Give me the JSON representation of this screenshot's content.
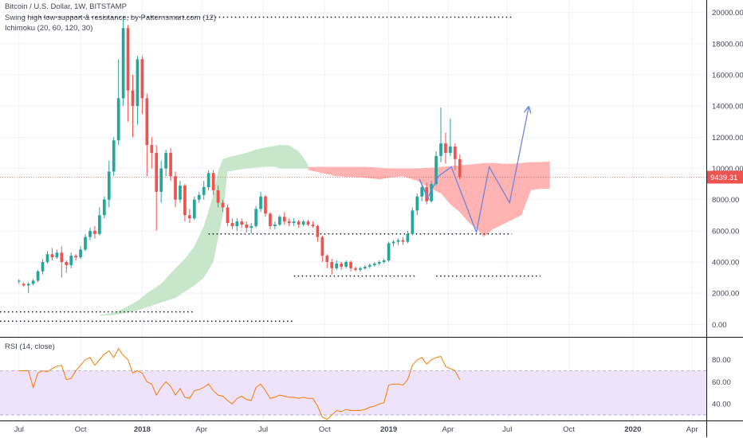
{
  "legend": {
    "title": "Bitcoin / U.S. Dollar, 1W, BITSTAMP",
    "indicator1": "Swing high low support & resistance, by Patternsmart.com (12)",
    "indicator2": "Ichimoku (20, 60, 120, 30)",
    "rsi": "RSI (14, close)"
  },
  "colors": {
    "up": "#26a69a",
    "down": "#ef5350",
    "cloud_bull": "#c8e6c9",
    "cloud_bear": "#ffb3b3",
    "rsi_line": "#f57c00",
    "rsi_band": "#efe3fb",
    "projection": "#6f86d6",
    "price_tag": "#ef5350"
  },
  "chart_data": [
    {
      "type": "candlestick",
      "timeframe": "1W",
      "current_price": 9439.31,
      "current_price_label": "9439.31",
      "y_ticks": [
        "20000.00",
        "18000.00",
        "16000.00",
        "14000.00",
        "12000.00",
        "10000.00",
        "8000.00",
        "6000.00",
        "4000.00",
        "2000.00",
        "0.00"
      ],
      "ylim": [
        -800,
        20800
      ],
      "x_ticks": [
        {
          "label": "Jul",
          "t": 0.0,
          "year": false
        },
        {
          "label": "Oct",
          "t": 13.0,
          "year": false
        },
        {
          "label": "2018",
          "t": 26.0,
          "year": true
        },
        {
          "label": "Apr",
          "t": 38.5,
          "year": false
        },
        {
          "label": "Jul",
          "t": 51.5,
          "year": false
        },
        {
          "label": "Oct",
          "t": 64.5,
          "year": false
        },
        {
          "label": "2019",
          "t": 78.0,
          "year": true
        },
        {
          "label": "Apr",
          "t": 90.5,
          "year": false
        },
        {
          "label": "Jul",
          "t": 103.0,
          "year": false
        },
        {
          "label": "Oct",
          "t": 116.0,
          "year": false
        },
        {
          "label": "2020",
          "t": 129.5,
          "year": true
        },
        {
          "label": "Apr",
          "t": 142.0,
          "year": false
        }
      ],
      "x_range": [
        -4,
        145
      ],
      "candles": [
        [
          2.8,
          2.8,
          2.9,
          2.6
        ],
        [
          2.6,
          2.5,
          2.7,
          2.4
        ],
        [
          2.5,
          2.6,
          2.7,
          2.0
        ],
        [
          2.6,
          2.8,
          2.9,
          2.5
        ],
        [
          2.8,
          3.4,
          3.5,
          2.7
        ],
        [
          3.4,
          4.0,
          4.2,
          3.2
        ],
        [
          4.0,
          4.5,
          4.7,
          3.9
        ],
        [
          4.5,
          4.3,
          4.9,
          4.1
        ],
        [
          4.3,
          4.6,
          4.8,
          4.2
        ],
        [
          4.6,
          4.0,
          5.0,
          3.0
        ],
        [
          4.0,
          3.8,
          4.1,
          3.3
        ],
        [
          3.8,
          4.4,
          4.6,
          3.6
        ],
        [
          4.4,
          4.3,
          4.5,
          4.1
        ],
        [
          4.3,
          4.8,
          5.0,
          4.2
        ],
        [
          4.8,
          5.6,
          5.8,
          4.7
        ],
        [
          5.6,
          6.0,
          6.2,
          5.4
        ],
        [
          6.0,
          5.8,
          6.3,
          5.5
        ],
        [
          5.8,
          7.0,
          7.5,
          5.7
        ],
        [
          7.0,
          8.0,
          8.2,
          6.8
        ],
        [
          8.0,
          9.8,
          10.5,
          7.5
        ],
        [
          9.8,
          11.8,
          12.0,
          9.5
        ],
        [
          11.8,
          14.5,
          17.0,
          11.5
        ],
        [
          14.5,
          19.0,
          19.7,
          14.0
        ],
        [
          19.0,
          15.0,
          19.2,
          13.0
        ],
        [
          15.0,
          14.0,
          16.0,
          12.0
        ],
        [
          14.0,
          17.0,
          17.2,
          12.8
        ],
        [
          17.0,
          14.5,
          17.2,
          13.5
        ],
        [
          14.5,
          11.5,
          14.8,
          9.5
        ],
        [
          11.5,
          11.0,
          12.0,
          10.0
        ],
        [
          11.0,
          8.5,
          11.5,
          6.0
        ],
        [
          8.5,
          10.0,
          10.5,
          7.8
        ],
        [
          10.0,
          11.0,
          11.2,
          9.5
        ],
        [
          11.0,
          9.5,
          11.3,
          9.2
        ],
        [
          9.5,
          8.0,
          9.8,
          7.5
        ],
        [
          8.0,
          8.9,
          9.2,
          7.8
        ],
        [
          8.9,
          7.0,
          9.0,
          6.6
        ],
        [
          7.0,
          6.8,
          7.4,
          6.5
        ],
        [
          6.8,
          8.0,
          8.2,
          6.7
        ],
        [
          8.0,
          8.3,
          8.5,
          7.8
        ],
        [
          8.3,
          8.8,
          9.2,
          8.0
        ],
        [
          8.8,
          9.7,
          9.9,
          8.6
        ],
        [
          9.7,
          8.6,
          9.9,
          8.3
        ],
        [
          8.6,
          7.8,
          8.9,
          7.5
        ],
        [
          7.8,
          7.5,
          8.0,
          7.2
        ],
        [
          7.5,
          6.5,
          7.7,
          6.3
        ],
        [
          6.5,
          6.3,
          6.8,
          6.1
        ],
        [
          6.3,
          6.6,
          6.8,
          6.0
        ],
        [
          6.6,
          6.4,
          6.8,
          6.2
        ],
        [
          6.4,
          6.2,
          6.6,
          5.9
        ],
        [
          6.2,
          6.3,
          6.5,
          5.8
        ],
        [
          6.3,
          7.4,
          7.6,
          6.2
        ],
        [
          7.4,
          8.2,
          8.5,
          7.2
        ],
        [
          8.2,
          7.1,
          8.3,
          6.9
        ],
        [
          7.1,
          6.3,
          7.2,
          6.1
        ],
        [
          6.3,
          6.4,
          6.6,
          6.1
        ],
        [
          6.4,
          6.9,
          7.0,
          6.3
        ],
        [
          6.9,
          6.6,
          7.2,
          6.4
        ],
        [
          6.6,
          6.5,
          6.8,
          6.3
        ],
        [
          6.5,
          6.6,
          6.8,
          6.3
        ],
        [
          6.6,
          6.4,
          6.7,
          6.2
        ],
        [
          6.4,
          6.6,
          6.7,
          6.3
        ],
        [
          6.6,
          6.4,
          6.7,
          6.3
        ],
        [
          6.4,
          6.3,
          6.6,
          6.2
        ],
        [
          6.3,
          5.6,
          6.4,
          5.3
        ],
        [
          5.6,
          4.4,
          5.7,
          4.0
        ],
        [
          4.4,
          4.0,
          4.5,
          3.6
        ],
        [
          4.0,
          3.6,
          4.2,
          3.2
        ],
        [
          3.6,
          3.9,
          4.1,
          3.5
        ],
        [
          3.9,
          3.7,
          4.0,
          3.5
        ],
        [
          3.7,
          4.0,
          4.1,
          3.6
        ],
        [
          4.0,
          3.6,
          4.1,
          3.4
        ],
        [
          3.6,
          3.5,
          3.7,
          3.4
        ],
        [
          3.5,
          3.6,
          3.7,
          3.4
        ],
        [
          3.6,
          3.7,
          3.8,
          3.5
        ],
        [
          3.7,
          3.8,
          3.9,
          3.6
        ],
        [
          3.8,
          3.9,
          4.0,
          3.7
        ],
        [
          3.9,
          4.0,
          4.1,
          3.8
        ],
        [
          4.0,
          4.1,
          4.2,
          3.9
        ],
        [
          4.1,
          5.2,
          5.3,
          4.0
        ],
        [
          5.2,
          5.3,
          5.4,
          5.0
        ],
        [
          5.3,
          5.4,
          5.5,
          5.1
        ],
        [
          5.4,
          5.3,
          5.6,
          5.1
        ],
        [
          5.3,
          5.8,
          6.0,
          5.2
        ],
        [
          5.8,
          7.3,
          7.5,
          5.7
        ],
        [
          7.3,
          8.2,
          8.4,
          7.0
        ],
        [
          8.2,
          8.8,
          9.0,
          7.9
        ],
        [
          8.8,
          7.9,
          9.1,
          7.7
        ],
        [
          7.9,
          9.0,
          9.2,
          7.8
        ],
        [
          9.0,
          10.8,
          11.1,
          8.9
        ],
        [
          10.8,
          11.6,
          13.9,
          10.4
        ],
        [
          11.6,
          11.0,
          12.3,
          10.3
        ],
        [
          11.0,
          11.4,
          13.2,
          10.8
        ],
        [
          11.4,
          10.6,
          11.6,
          9.9
        ],
        [
          10.6,
          9.44,
          10.9,
          9.3
        ]
      ],
      "cloud_bull": [
        [
          17,
          0.55,
          0.6
        ],
        [
          20,
          0.6,
          0.75
        ],
        [
          22,
          0.7,
          1.0
        ],
        [
          25,
          0.9,
          1.5
        ],
        [
          27,
          1.1,
          2.0
        ],
        [
          30,
          1.4,
          2.6
        ],
        [
          33,
          1.7,
          3.6
        ],
        [
          35,
          2.1,
          4.2
        ],
        [
          37,
          2.5,
          5.0
        ],
        [
          39,
          3.0,
          6.3
        ],
        [
          41,
          4.0,
          8.3
        ],
        [
          42,
          5.5,
          9.8
        ],
        [
          43,
          7.0,
          10.6
        ],
        [
          44,
          9.8,
          10.7
        ],
        [
          46,
          9.9,
          10.85
        ],
        [
          48,
          10.0,
          11.0
        ],
        [
          50,
          10.05,
          11.2
        ],
        [
          52,
          10.1,
          11.35
        ],
        [
          54,
          10.1,
          11.45
        ],
        [
          55,
          10.0,
          11.5
        ],
        [
          57,
          10.0,
          11.48
        ],
        [
          59,
          10.0,
          11.1
        ],
        [
          61,
          10.0,
          10.25
        ]
      ],
      "cloud_bear": [
        [
          61,
          10.1,
          9.9
        ],
        [
          64,
          10.1,
          9.7
        ],
        [
          67,
          10.1,
          9.5
        ],
        [
          70,
          10.1,
          9.45
        ],
        [
          73,
          10.1,
          9.4
        ],
        [
          76,
          10.05,
          9.3
        ],
        [
          78,
          10.0,
          9.4
        ],
        [
          81,
          10.0,
          9.5
        ],
        [
          84,
          10.0,
          9.2
        ],
        [
          87,
          10.05,
          8.7
        ],
        [
          89,
          10.1,
          8.4
        ],
        [
          91,
          10.15,
          7.7
        ],
        [
          93,
          10.2,
          7.2
        ],
        [
          95,
          10.25,
          6.5
        ],
        [
          97,
          10.3,
          6.0
        ],
        [
          98,
          10.35,
          5.6
        ],
        [
          100,
          10.35,
          6.1
        ],
        [
          102,
          10.3,
          6.4
        ],
        [
          104,
          10.3,
          6.7
        ],
        [
          106,
          10.35,
          7.0
        ],
        [
          107,
          10.38,
          7.8
        ],
        [
          108,
          10.4,
          8.6
        ],
        [
          110,
          10.4,
          8.7
        ],
        [
          112,
          10.45,
          8.7
        ]
      ],
      "support_resistance": [
        {
          "t0": 1,
          "t1": 104,
          "y": 19.7
        },
        {
          "t0": 40,
          "t1": 104,
          "y": 5.8
        },
        {
          "t0": 58,
          "t1": 84,
          "y": 3.1
        },
        {
          "t0": 88,
          "t1": 110,
          "y": 3.1
        },
        {
          "t0": -4,
          "t1": 37,
          "y": 0.8
        },
        {
          "t0": -4,
          "t1": 58,
          "y": 0.2
        }
      ],
      "projection": [
        [
          84.5,
          9.3
        ],
        [
          86.2,
          8.1
        ],
        [
          88.5,
          9.5
        ],
        [
          91.2,
          10.1
        ],
        [
          96.5,
          5.9
        ],
        [
          99.2,
          10.1
        ],
        [
          103.5,
          7.8
        ],
        [
          107.5,
          13.9
        ]
      ],
      "projection_branch": [
        [
          84.5,
          9.3
        ],
        [
          86.5,
          8.0
        ]
      ],
      "price_unit_multiplier": 1000
    },
    {
      "type": "line",
      "title": "RSI (14, close)",
      "y_ticks": [
        "80.00",
        "60.00",
        "40.00"
      ],
      "ylim": [
        25,
        100
      ],
      "band": [
        30,
        70
      ],
      "values": [
        70,
        70,
        70,
        55,
        68,
        70,
        69,
        72,
        74,
        75,
        62,
        63,
        70,
        75,
        80,
        82,
        75,
        80,
        85,
        88,
        82,
        90,
        84,
        80,
        68,
        70,
        68,
        60,
        58,
        48,
        55,
        60,
        56,
        48,
        54,
        46,
        45,
        52,
        53,
        55,
        58,
        52,
        48,
        47,
        43,
        40,
        45,
        47,
        44,
        43,
        55,
        58,
        52,
        45,
        46,
        48,
        47,
        46,
        46,
        45,
        46,
        45,
        45,
        38,
        28,
        26,
        30,
        34,
        33,
        35,
        34,
        34,
        34,
        35,
        37,
        38,
        40,
        41,
        57,
        58,
        58,
        57,
        62,
        75,
        80,
        82,
        76,
        80,
        82,
        83,
        74,
        72,
        70,
        62
      ]
    }
  ]
}
